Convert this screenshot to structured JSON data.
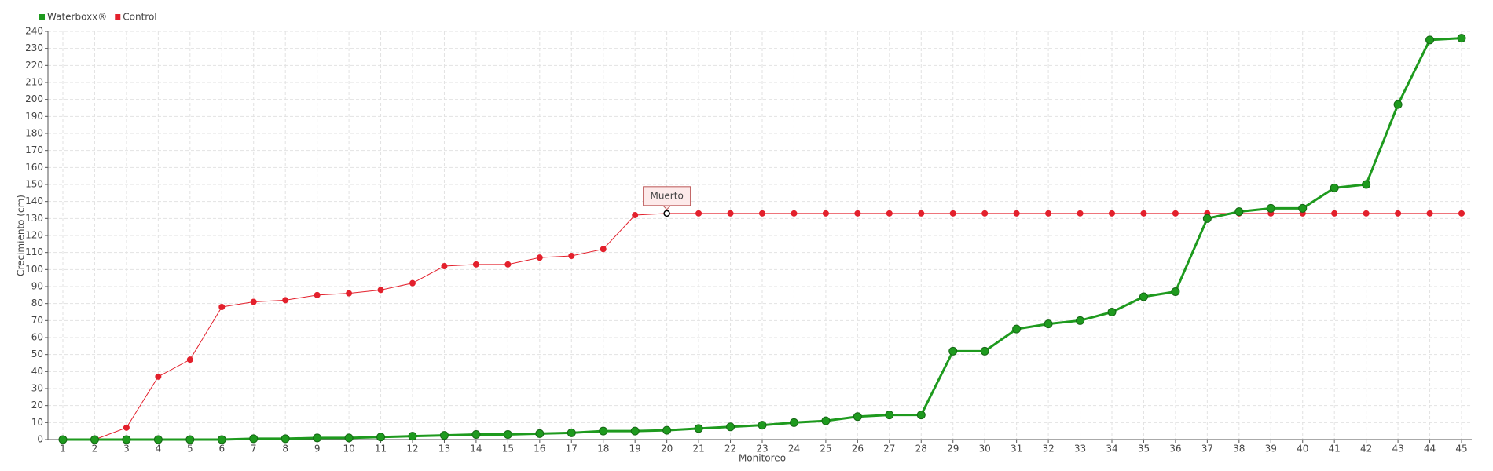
{
  "chart_data": {
    "type": "line",
    "x_label": "Monitoreo",
    "y_label": "Crecimiento (cm)",
    "categories": [
      "1",
      "2",
      "3",
      "4",
      "5",
      "6",
      "7",
      "8",
      "9",
      "10",
      "11",
      "12",
      "13",
      "14",
      "15",
      "16",
      "17",
      "18",
      "19",
      "20",
      "21",
      "22",
      "23",
      "24",
      "25",
      "26",
      "27",
      "28",
      "29",
      "30",
      "31",
      "32",
      "33",
      "34",
      "35",
      "36",
      "37",
      "38",
      "39",
      "40",
      "41",
      "42",
      "43",
      "44",
      "45"
    ],
    "series": [
      {
        "name": "Waterboxx®",
        "color": "#1e9a1e",
        "values": [
          0,
          0,
          0,
          0,
          0,
          0,
          0.5,
          0.5,
          1,
          1,
          1.5,
          2,
          2.5,
          3,
          3,
          3.5,
          4,
          5,
          5,
          5.5,
          6.5,
          7.5,
          8.5,
          10,
          11,
          13.5,
          14.5,
          14.5,
          52,
          52,
          65,
          68,
          70,
          75,
          84,
          87,
          130,
          134,
          136,
          136,
          148,
          150,
          197,
          235,
          236
        ]
      },
      {
        "name": "Control",
        "color": "#e3202c",
        "values": [
          0,
          0,
          7,
          37,
          47,
          78,
          81,
          82,
          85,
          86,
          88,
          92,
          102,
          103,
          103,
          107,
          108,
          112,
          132,
          133,
          133,
          133,
          133,
          133,
          133,
          133,
          133,
          133,
          133,
          133,
          133,
          133,
          133,
          133,
          133,
          133,
          133,
          133,
          133,
          133,
          133,
          133,
          133,
          133,
          133
        ]
      }
    ],
    "annotations": [
      {
        "text": "Muerto",
        "series": "Control",
        "x": "20"
      }
    ],
    "ylim": [
      0,
      240
    ],
    "yticks": [
      0,
      10,
      20,
      30,
      40,
      50,
      60,
      70,
      80,
      90,
      100,
      110,
      120,
      130,
      140,
      150,
      160,
      170,
      180,
      190,
      200,
      210,
      220,
      230,
      240
    ],
    "grid": true,
    "legend": "top-left"
  }
}
